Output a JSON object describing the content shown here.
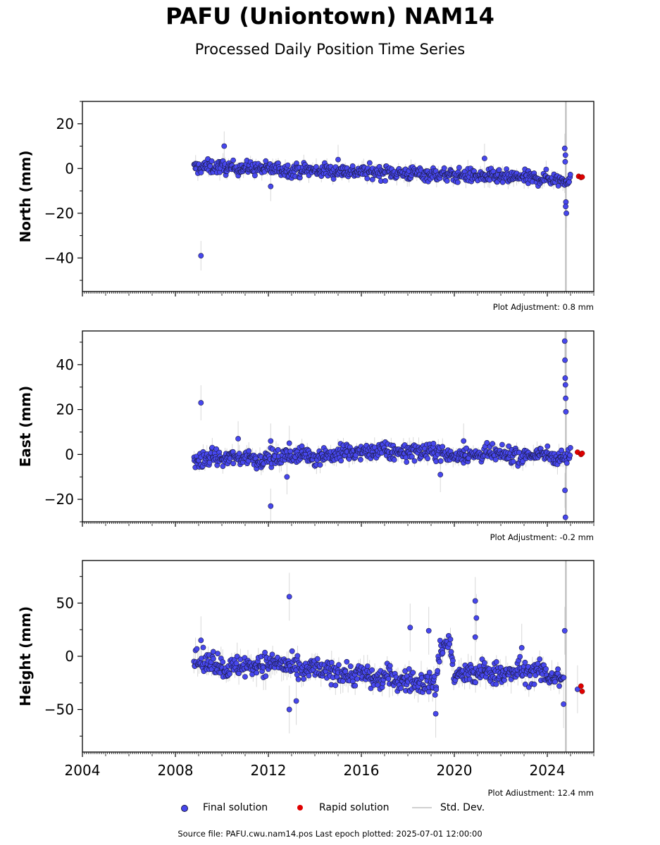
{
  "title": "PAFU (Uniontown) NAM14",
  "subtitle": "Processed Daily Position Time Series",
  "footer": "Source file: PAFU.cwu.nam14.pos  Last epoch plotted: 2025-07-01 12:00:00",
  "legend": {
    "final_label": "Final solution",
    "rapid_label": "Rapid solution",
    "std_label": "Std. Dev."
  },
  "colors": {
    "final": "#4747ee",
    "final_edge": "#1a1a40",
    "rapid": "#e00000",
    "std_dev": "#c8c8c8"
  },
  "chart_data": [
    {
      "type": "scatter",
      "ylabel": "North (mm)",
      "adjustment": "Plot Adjustment: 0.8 mm",
      "xlim": [
        2004,
        2026
      ],
      "ylim": [
        -55,
        30
      ],
      "yticks": [
        20,
        0,
        -20,
        -40
      ],
      "ytick_labels": [
        "20",
        "0",
        "−20",
        "−40"
      ],
      "final_x": [
        2008.8,
        2009.0,
        2009.3,
        2009.6,
        2010.0,
        2010.4,
        2010.8,
        2011.2,
        2011.6,
        2012.0,
        2012.4,
        2012.8,
        2013.2,
        2013.6,
        2014.0,
        2014.4,
        2014.8,
        2015.2,
        2015.6,
        2016.0,
        2016.4,
        2016.8,
        2017.2,
        2017.6,
        2018.0,
        2018.4,
        2018.8,
        2019.2,
        2019.6,
        2020.0,
        2020.4,
        2020.8,
        2021.2,
        2021.6,
        2022.0,
        2022.4,
        2022.8,
        2023.2,
        2023.6,
        2024.0,
        2024.4,
        2024.7,
        2025.0
      ],
      "final_y": [
        0.2,
        0.5,
        0.8,
        0.6,
        0.7,
        0.1,
        0.4,
        0.2,
        -0.1,
        -0.3,
        -0.2,
        -0.6,
        -0.9,
        -0.5,
        -1.1,
        -0.8,
        -1.2,
        -0.9,
        -1.5,
        -1.3,
        -1.6,
        -1.8,
        -1.5,
        -2.0,
        -2.2,
        -2.0,
        -2.5,
        -2.6,
        -2.9,
        -3.2,
        -2.8,
        -3.3,
        -3.5,
        -3.6,
        -3.9,
        -4.1,
        -3.8,
        -4.4,
        -4.6,
        -4.2,
        -4.8,
        -5.0,
        -4.9
      ],
      "outliers_x": [
        2009.1,
        2010.1,
        2012.1,
        2015.0,
        2021.3,
        2024.75,
        2024.78,
        2024.8,
        2024.82,
        2024.77,
        2024.79
      ],
      "outliers_y": [
        -39,
        10,
        -8,
        4,
        4.5,
        9,
        6,
        -15,
        -20,
        3,
        -17
      ],
      "rapid_x": [
        2025.35,
        2025.45,
        2025.5
      ],
      "rapid_y": [
        -3.5,
        -4.0,
        -3.8
      ],
      "spread": 2.2
    },
    {
      "type": "scatter",
      "ylabel": "East (mm)",
      "adjustment": "Plot Adjustment: -0.2 mm",
      "xlim": [
        2004,
        2026
      ],
      "ylim": [
        -30,
        55
      ],
      "yticks": [
        40,
        20,
        0,
        -20
      ],
      "ytick_labels": [
        "40",
        "20",
        "0",
        "−20"
      ],
      "final_x": [
        2008.8,
        2009.0,
        2009.3,
        2009.6,
        2010.0,
        2010.4,
        2010.8,
        2011.2,
        2011.6,
        2012.0,
        2012.4,
        2012.8,
        2013.2,
        2013.6,
        2014.0,
        2014.4,
        2014.8,
        2015.2,
        2015.6,
        2016.0,
        2016.4,
        2016.8,
        2017.2,
        2017.6,
        2018.0,
        2018.4,
        2018.8,
        2019.2,
        2019.6,
        2020.0,
        2020.4,
        2020.8,
        2021.2,
        2021.6,
        2022.0,
        2022.4,
        2022.8,
        2023.2,
        2023.6,
        2024.0,
        2024.4,
        2024.7,
        2025.0
      ],
      "final_y": [
        -2.5,
        -3.0,
        -2.0,
        -1.0,
        -2.5,
        -1.0,
        -2.0,
        -0.5,
        -3.0,
        -1.5,
        -2.0,
        -0.5,
        -1.0,
        0.5,
        -1.5,
        0.0,
        -0.5,
        1.0,
        0.0,
        1.5,
        0.5,
        2.0,
        0.5,
        1.5,
        1.0,
        2.0,
        0.5,
        1.5,
        0.0,
        -1.0,
        0.5,
        -0.5,
        0.0,
        0.5,
        -0.5,
        0.0,
        -1.0,
        0.0,
        -0.5,
        0.0,
        -1.0,
        -1.5,
        -1.0
      ],
      "outliers_x": [
        2009.1,
        2010.7,
        2012.1,
        2012.1,
        2012.8,
        2012.9,
        2019.4,
        2020.4,
        2024.75,
        2024.76,
        2024.77,
        2024.78,
        2024.79,
        2024.8,
        2024.76,
        2024.78
      ],
      "outliers_y": [
        23,
        7,
        6,
        -23,
        -10,
        5,
        -9,
        6,
        50.5,
        42,
        34,
        31,
        25,
        19,
        -16,
        -28
      ],
      "rapid_x": [
        2025.3,
        2025.45,
        2025.5
      ],
      "rapid_y": [
        1.0,
        0.0,
        0.5
      ],
      "spread": 2.6
    },
    {
      "type": "scatter",
      "ylabel": "Height (mm)",
      "adjustment": "Plot Adjustment: 12.4 mm",
      "xlim": [
        2004,
        2026
      ],
      "ylim": [
        -90,
        90
      ],
      "yticks": [
        50,
        0,
        -50
      ],
      "ytick_labels": [
        "50",
        "0",
        "−50"
      ],
      "xticks": [
        2004,
        2008,
        2012,
        2016,
        2020,
        2024
      ],
      "xtick_labels": [
        "2004",
        "2008",
        "2012",
        "2016",
        "2020",
        "2024"
      ],
      "final_x": [
        2008.8,
        2009.0,
        2009.3,
        2009.6,
        2010.0,
        2010.4,
        2010.8,
        2011.2,
        2011.6,
        2012.0,
        2012.4,
        2012.8,
        2013.2,
        2013.6,
        2014.0,
        2014.4,
        2014.8,
        2015.2,
        2015.6,
        2016.0,
        2016.4,
        2016.8,
        2017.2,
        2017.6,
        2018.0,
        2018.4,
        2018.8,
        2019.2,
        2019.4,
        2019.6,
        2019.8,
        2020.0,
        2020.4,
        2020.8,
        2021.2,
        2021.6,
        2022.0,
        2022.4,
        2022.8,
        2023.2,
        2023.6,
        2024.0,
        2024.4,
        2024.7
      ],
      "final_y": [
        -2,
        -5,
        -8,
        -3,
        -10,
        -12,
        -8,
        -10,
        -6,
        -8,
        -5,
        -10,
        -12,
        -15,
        -10,
        -16,
        -14,
        -15,
        -18,
        -16,
        -20,
        -22,
        -18,
        -24,
        -22,
        -26,
        -24,
        -28,
        8,
        12,
        14,
        -20,
        -16,
        -18,
        -14,
        -16,
        -15,
        -18,
        -12,
        -16,
        -14,
        -18,
        -20,
        -22
      ],
      "outliers_x": [
        2009.1,
        2012.9,
        2012.9,
        2013.2,
        2018.1,
        2018.9,
        2019.2,
        2020.9,
        2020.95,
        2020.9,
        2022.9,
        2024.7,
        2024.75,
        2025.3
      ],
      "outliers_y": [
        15,
        56,
        -50,
        -42,
        27,
        24,
        -54,
        52,
        36,
        18,
        8,
        -45,
        24,
        -31
      ],
      "rapid_x": [
        2025.45,
        2025.5
      ],
      "rapid_y": [
        -28,
        -33
      ],
      "spread": 7.5
    }
  ]
}
